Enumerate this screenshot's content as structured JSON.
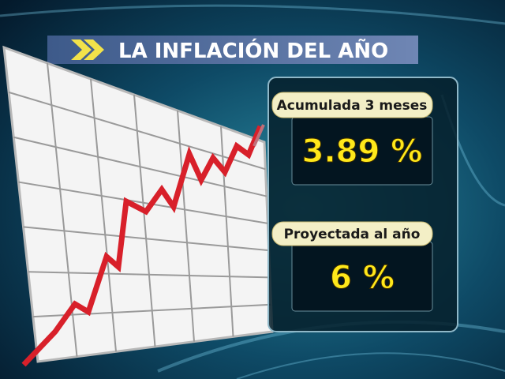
{
  "header": {
    "title": "LA INFLACIÓN DEL AÑO"
  },
  "panels": [
    {
      "label": "Acumulada 3 meses",
      "value": "3.89 %"
    },
    {
      "label": "Proyectada al año",
      "value": "6 %"
    }
  ]
}
